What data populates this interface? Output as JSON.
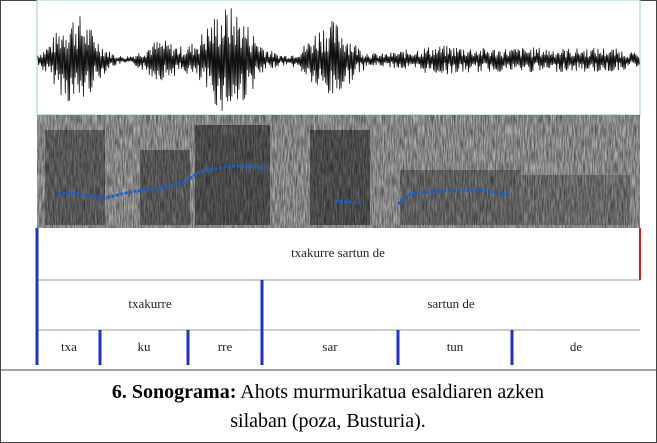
{
  "figure": {
    "tiers": [
      {
        "intervals": [
          "txakurre sartun de"
        ]
      },
      {
        "intervals": [
          "txakurre",
          "sartun de"
        ]
      },
      {
        "intervals": [
          "txa",
          "ku",
          "rre",
          "sar",
          "tun",
          "de"
        ]
      }
    ]
  },
  "caption": {
    "label": "6. Sonograma:",
    "text": "Ahots murmurikatua esaldiaren azken silaban (poza, Busturia)."
  }
}
